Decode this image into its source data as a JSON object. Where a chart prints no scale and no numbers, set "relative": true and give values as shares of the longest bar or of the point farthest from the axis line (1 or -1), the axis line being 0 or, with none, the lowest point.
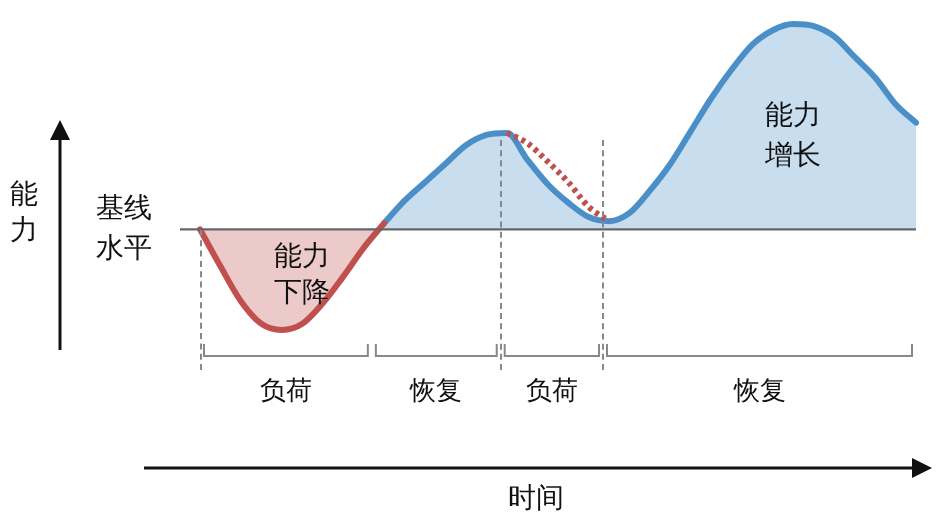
{
  "chart_data": {
    "type": "area",
    "relative": true,
    "categories": [
      null,
      null,
      null,
      null,
      null,
      null,
      null,
      null,
      null,
      null,
      null,
      null,
      null,
      null,
      null,
      null,
      null,
      null,
      null,
      null,
      null,
      null,
      null,
      null,
      null,
      null,
      null,
      null,
      null,
      null,
      null,
      null,
      null,
      null,
      null,
      null
    ],
    "series": [
      {
        "type": "area",
        "color": "#c0504d",
        "values": [
          0,
          -0.18,
          -0.35,
          -0.46,
          -0.49,
          -0.46,
          -0.36,
          -0.23,
          -0.09,
          0.03,
          null,
          null,
          null,
          null,
          null,
          null,
          null,
          null,
          null,
          null,
          null,
          null,
          null,
          null,
          null,
          null,
          null,
          null,
          null,
          null,
          null,
          null,
          null,
          null,
          null,
          null
        ]
      },
      {
        "type": "area",
        "color": "#4a8fc8",
        "values": [
          null,
          null,
          null,
          null,
          null,
          null,
          null,
          null,
          null,
          0.03,
          0.14,
          0.23,
          0.32,
          0.41,
          0.46,
          0.47,
          0.34,
          0.22,
          0.13,
          0.06,
          0.04,
          0.08,
          0.19,
          0.32,
          0.48,
          0.64,
          0.78,
          0.9,
          0.97,
          1,
          0.99,
          0.94,
          0.84,
          0.74,
          0.61,
          0.52
        ]
      },
      {
        "type": "line",
        "line_style": "dotted",
        "color": "#c0504d",
        "values": [
          null,
          null,
          null,
          null,
          null,
          null,
          null,
          null,
          null,
          null,
          null,
          null,
          null,
          null,
          null,
          0.47,
          0.42,
          0.33,
          0.23,
          0.11,
          0.04,
          null,
          null,
          null,
          null,
          null,
          null,
          null,
          null,
          null,
          null,
          null,
          null,
          null,
          null,
          null
        ]
      }
    ],
    "annotations": [
      "基线水平",
      "能力下降",
      "能力增长",
      "负荷",
      "恢复",
      "负荷",
      "恢复",
      "能力",
      "时间"
    ],
    "marker": "none",
    "legend": false
  }
}
